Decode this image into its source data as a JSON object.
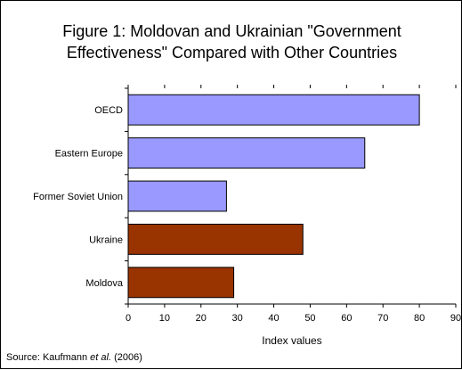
{
  "chart_data": {
    "type": "bar",
    "orientation": "horizontal",
    "title_lines": [
      "Figure 1: Moldovan and Ukrainian \"Government",
      "Effectiveness\" Compared with Other Countries"
    ],
    "categories": [
      "OECD",
      "Eastern Europe",
      "Former Soviet Union",
      "Ukraine",
      "Moldova"
    ],
    "values": [
      80,
      65,
      27,
      48,
      29
    ],
    "bar_colors": [
      "#9999ff",
      "#9999ff",
      "#9999ff",
      "#993300",
      "#993300"
    ],
    "xlabel": "Index values",
    "ylabel": "",
    "xlim": [
      0,
      90
    ],
    "xticks": [
      0,
      10,
      20,
      30,
      40,
      50,
      60,
      70,
      80,
      90
    ],
    "grid": false,
    "legend": "none"
  },
  "source": {
    "prefix": "Source: Kaufmann ",
    "italic": "et al.",
    "suffix": " (2006)"
  }
}
